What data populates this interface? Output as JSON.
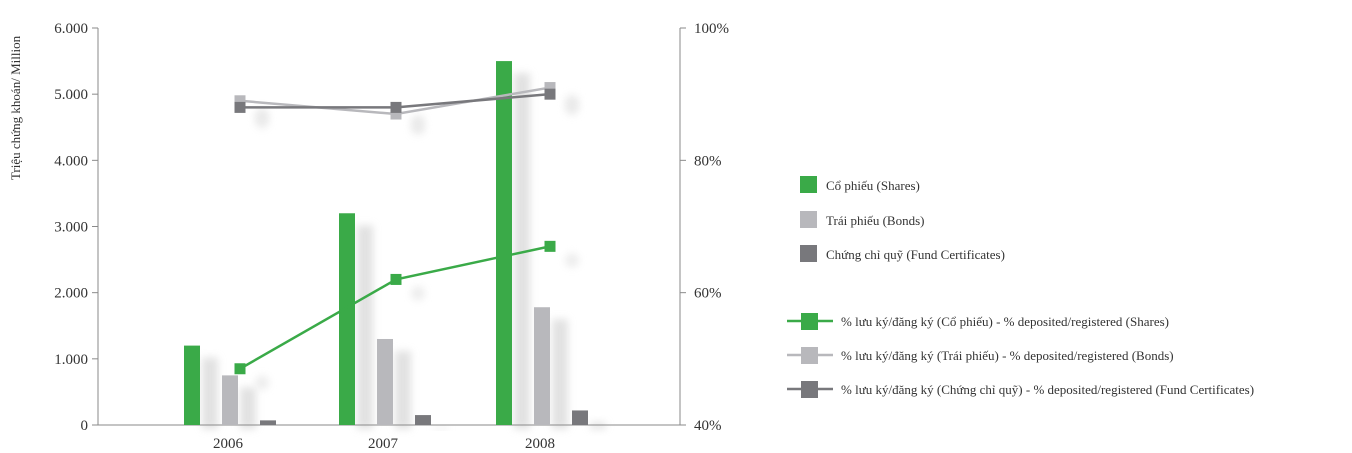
{
  "chart_data": {
    "type": "bar",
    "categories": [
      "2006",
      "2007",
      "2008"
    ],
    "ylabel": "Triệu chứng khoán/ Million",
    "ylim": [
      0,
      6000
    ],
    "y_ticks": [
      "0",
      "1.000",
      "2.000",
      "3.000",
      "4.000",
      "5.000",
      "6.000"
    ],
    "y2lim": [
      40,
      100
    ],
    "y2_ticks": [
      "40%",
      "60%",
      "80%",
      "100%"
    ],
    "grid": false,
    "legend_position": "right",
    "series": [
      {
        "name": "Cổ phiếu (Shares)",
        "kind": "bar",
        "axis": "left",
        "color": "#3aaa48",
        "values": [
          1200,
          3200,
          5500
        ]
      },
      {
        "name": "Trái phiếu (Bonds)",
        "kind": "bar",
        "axis": "left",
        "color": "#b8b8bc",
        "values": [
          750,
          1300,
          1780
        ]
      },
      {
        "name": "Chứng chỉ quỹ (Fund Certificates)",
        "kind": "bar",
        "axis": "left",
        "color": "#78787c",
        "values": [
          70,
          150,
          220
        ]
      },
      {
        "name": "% lưu ký/đăng ký (Cổ phiếu) - % deposited/registered (Shares)",
        "kind": "line",
        "axis": "right",
        "color": "#3aaa48",
        "values": [
          48.5,
          62,
          67
        ]
      },
      {
        "name": "% lưu ký/đăng ký (Trái phiếu) - % deposited/registered (Bonds)",
        "kind": "line",
        "axis": "right",
        "color": "#b8b8bc",
        "values": [
          89,
          87,
          91
        ]
      },
      {
        "name": "% lưu ký/đăng ký (Chứng chỉ quỹ) - % deposited/registered (Fund Certificates)",
        "kind": "line",
        "axis": "right",
        "color": "#78787c",
        "values": [
          88,
          88,
          90
        ]
      }
    ]
  }
}
